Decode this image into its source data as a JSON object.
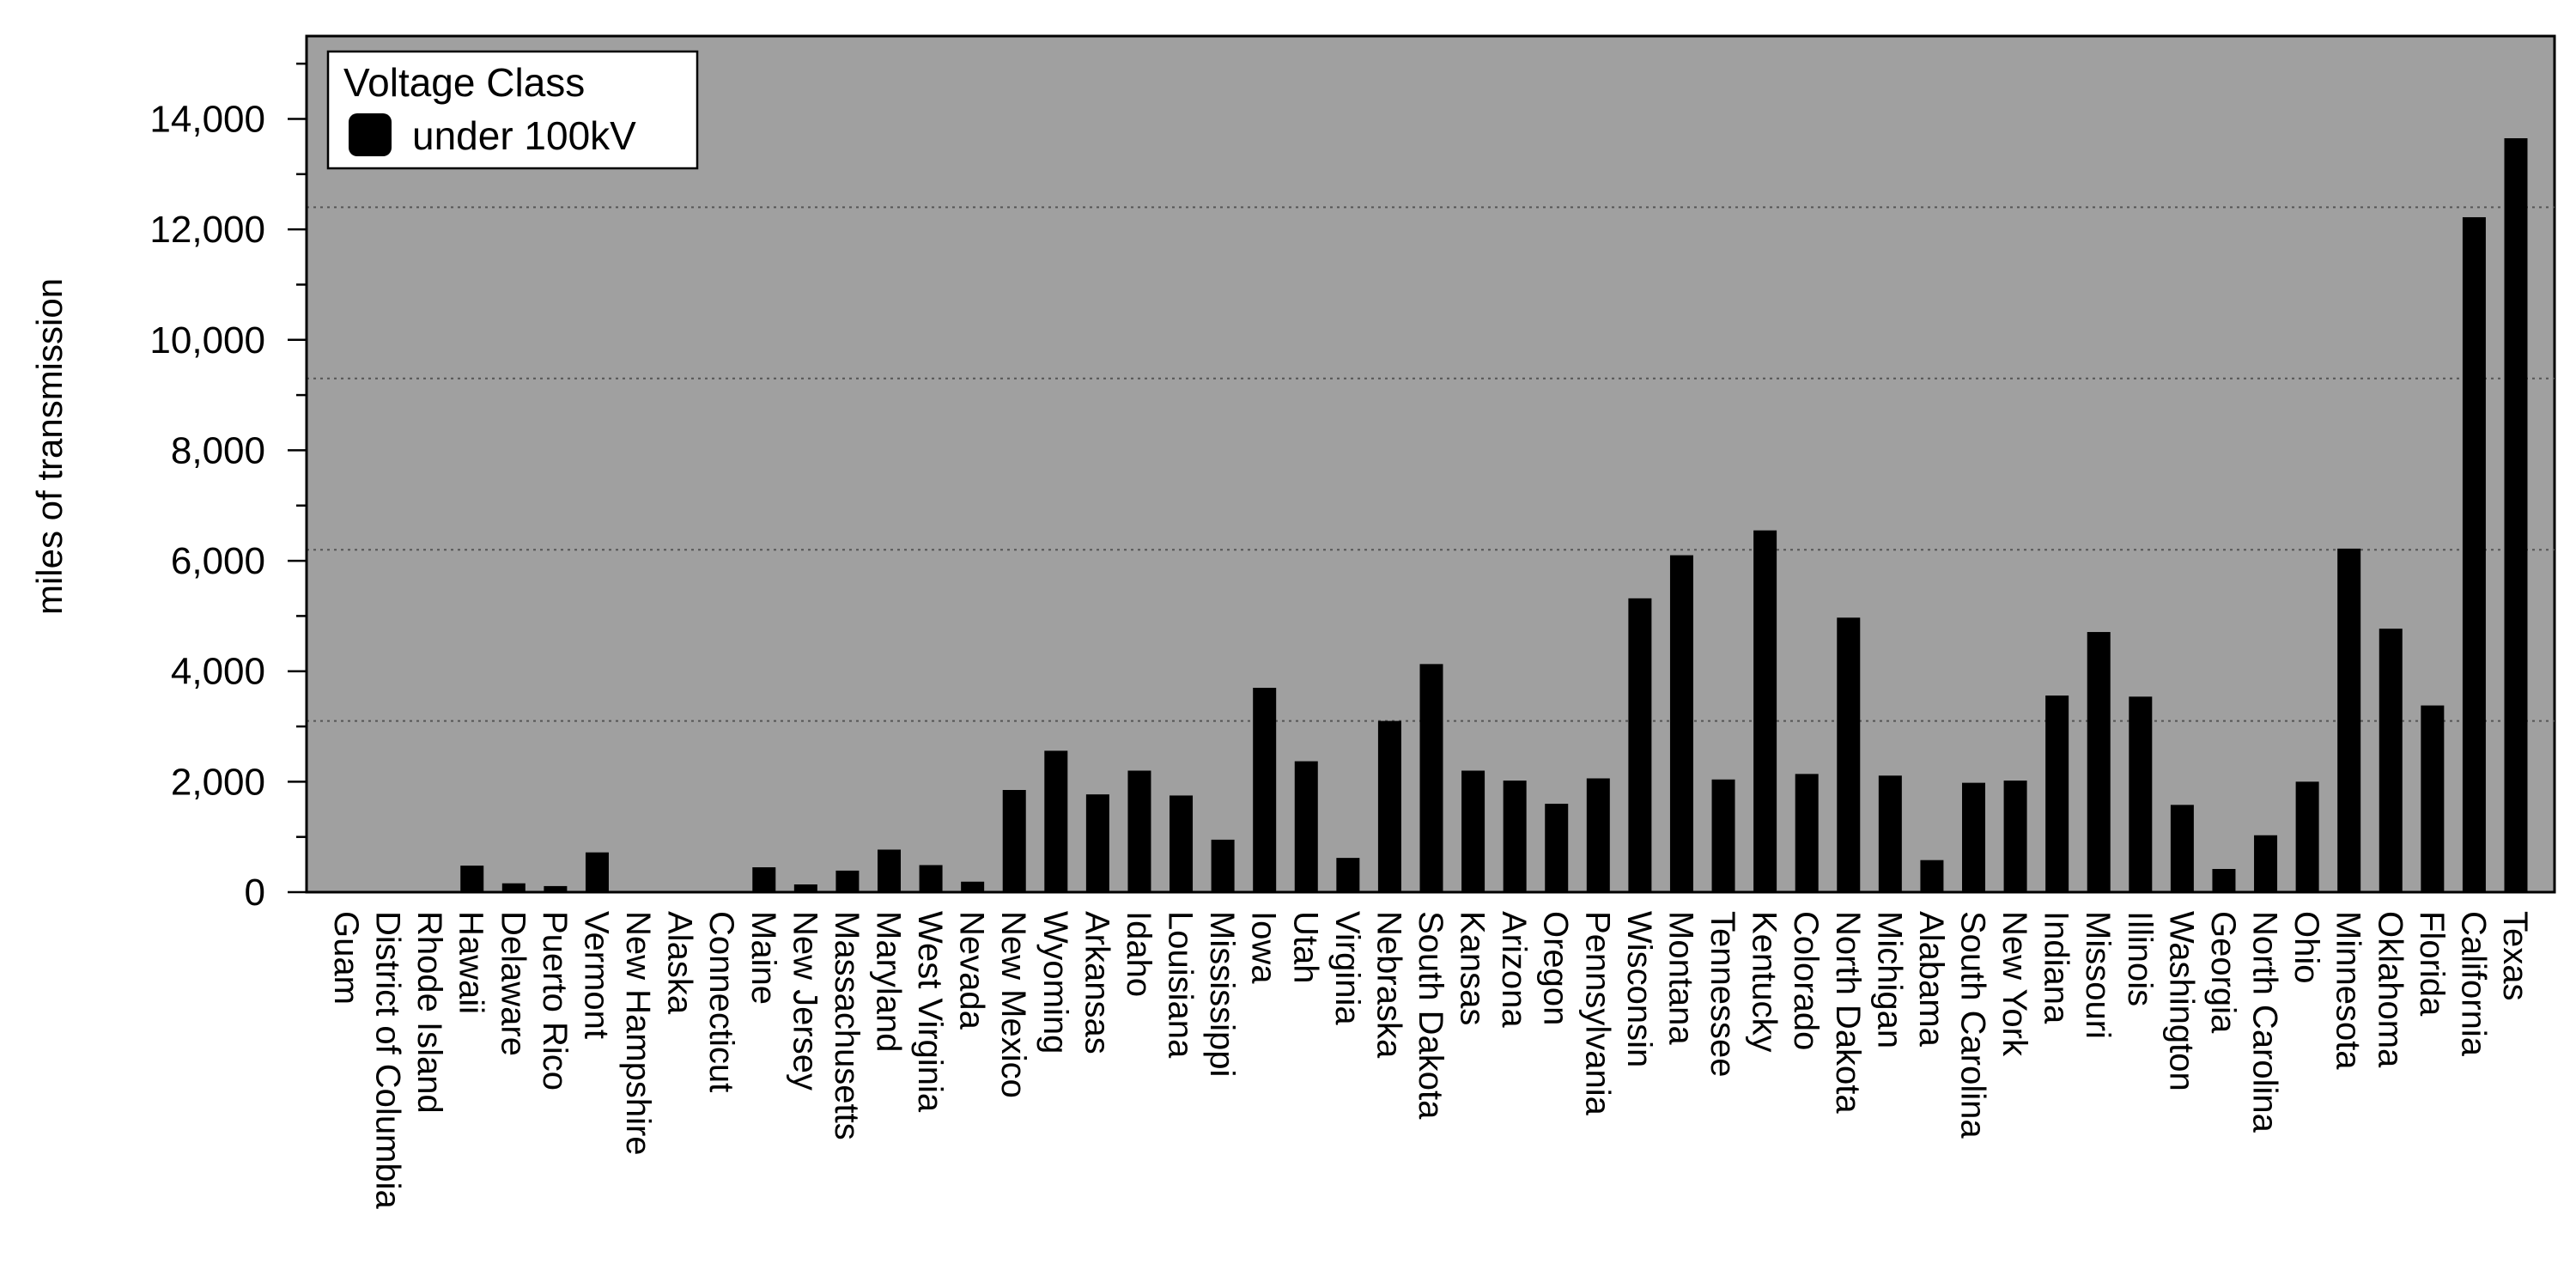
{
  "chart_data": {
    "type": "bar",
    "title": "",
    "xlabel": "",
    "ylabel": "miles of transmission",
    "ylim": [
      0,
      15500
    ],
    "yticks": [
      0,
      2000,
      4000,
      6000,
      8000,
      10000,
      12000,
      14000
    ],
    "ytick_labels": [
      "0",
      "2,000",
      "4,000",
      "6,000",
      "8,000",
      "10,000",
      "12,000",
      "14,000"
    ],
    "grid": "dotted horizontal reference lines",
    "reference_lines": [
      3100,
      6200,
      9300,
      12400
    ],
    "legend": {
      "title": "Voltage Class",
      "position": "top-left"
    },
    "categories": [
      "Guam",
      "District of Columbia",
      "Rhode Island",
      "Hawaii",
      "Delaware",
      "Puerto Rico",
      "Vermont",
      "New Hampshire",
      "Alaska",
      "Connecticut",
      "Maine",
      "New Jersey",
      "Massachusetts",
      "Maryland",
      "West Virginia",
      "Nevada",
      "New Mexico",
      "Wyoming",
      "Arkansas",
      "Idaho",
      "Louisiana",
      "Mississippi",
      "Iowa",
      "Utah",
      "Virginia",
      "Nebraska",
      "South Dakota",
      "Kansas",
      "Arizona",
      "Oregon",
      "Pennsylvania",
      "Wisconsin",
      "Montana",
      "Tennessee",
      "Kentucky",
      "Colorado",
      "North Dakota",
      "Michigan",
      "Alabama",
      "South Carolina",
      "New York",
      "Indiana",
      "Missouri",
      "Illinois",
      "Washington",
      "Georgia",
      "North Carolina",
      "Ohio",
      "Minnesota",
      "Oklahoma",
      "Florida",
      "California",
      "Texas"
    ],
    "series": [
      {
        "name": "under 100kV",
        "color": "#000000",
        "values": [
          0,
          10,
          0,
          480,
          160,
          110,
          720,
          20,
          20,
          0,
          450,
          140,
          390,
          770,
          490,
          190,
          1850,
          2560,
          1770,
          2200,
          1750,
          950,
          3700,
          2370,
          620,
          3100,
          4130,
          2200,
          2020,
          1600,
          2060,
          5320,
          6100,
          2040,
          6550,
          2140,
          4970,
          2110,
          580,
          1980,
          2020,
          3560,
          4710,
          3540,
          1580,
          420,
          1030,
          2000,
          6220,
          4770,
          3380,
          12220,
          13650
        ]
      }
    ]
  },
  "colors": {
    "plot_background": "#a0a0a0",
    "bar": "#000000",
    "gridline": "#555555"
  }
}
